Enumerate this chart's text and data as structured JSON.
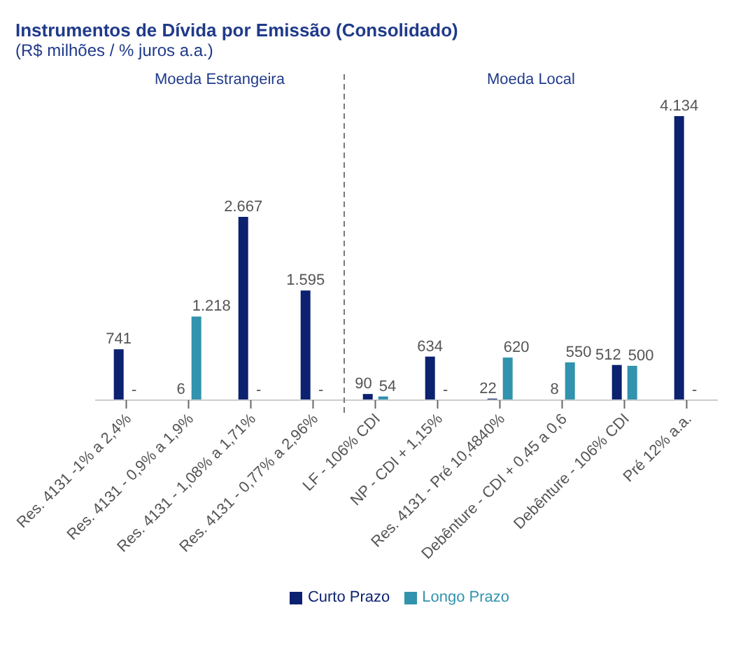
{
  "chart_data": {
    "type": "bar",
    "title": "Instrumentos de Dívida por Emissão (Consolidado)",
    "subtitle": "(R$ milhões  / % juros a.a.)",
    "annotations": [
      "Moeda Estrangeira",
      "Moeda Local"
    ],
    "categories": [
      "Res. 4131 -1% a 2,4%",
      "Res. 4131 - 0,9% a 1,9%",
      "Res. 4131 - 1,08% a 1,71%",
      "Res. 4131 - 0,77% a 2,96%",
      "LF - 106% CDI",
      "NP - CDI + 1,15%",
      "Res. 4131 - Pré 10,4840%",
      "Debênture - CDI + 0,45 a 0,6",
      "Debênture - 106% CDI",
      "Pré 12% a.a."
    ],
    "series": [
      {
        "name": "Curto Prazo",
        "color": "#0c2170",
        "values": [
          741,
          6,
          2667,
          1595,
          90,
          634,
          22,
          8,
          512,
          4134
        ],
        "value_labels": [
          "741",
          "6",
          "2.667",
          "1.595",
          "90",
          "634",
          "22",
          "8",
          "512",
          "4.134"
        ]
      },
      {
        "name": "Longo Prazo",
        "color": "#3193ad",
        "values": [
          0,
          1218,
          0,
          0,
          54,
          0,
          620,
          550,
          500,
          0
        ],
        "value_labels": [
          "-",
          "1.218",
          "-",
          "-",
          "54",
          "-",
          "620",
          "550",
          "500",
          "-"
        ]
      }
    ],
    "legend": "bottom"
  }
}
